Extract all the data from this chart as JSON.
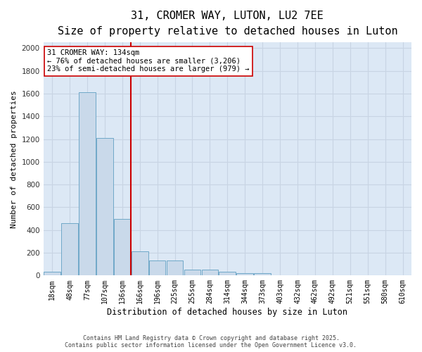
{
  "title_line1": "31, CROMER WAY, LUTON, LU2 7EE",
  "title_line2": "Size of property relative to detached houses in Luton",
  "xlabel": "Distribution of detached houses by size in Luton",
  "ylabel": "Number of detached properties",
  "categories": [
    "18sqm",
    "48sqm",
    "77sqm",
    "107sqm",
    "136sqm",
    "166sqm",
    "196sqm",
    "225sqm",
    "255sqm",
    "284sqm",
    "314sqm",
    "344sqm",
    "373sqm",
    "403sqm",
    "432sqm",
    "462sqm",
    "492sqm",
    "521sqm",
    "551sqm",
    "580sqm",
    "610sqm"
  ],
  "values": [
    30,
    460,
    1610,
    1210,
    500,
    210,
    130,
    130,
    50,
    50,
    30,
    20,
    20,
    0,
    0,
    0,
    0,
    0,
    0,
    0,
    0
  ],
  "bar_color": "#c9d9ea",
  "bar_edgecolor": "#6fa8c8",
  "vline_x": 4.5,
  "vline_color": "#cc0000",
  "annotation_text": "31 CROMER WAY: 134sqm\n← 76% of detached houses are smaller (3,206)\n23% of semi-detached houses are larger (979) →",
  "annotation_box_edgecolor": "#cc0000",
  "annotation_box_facecolor": "#ffffff",
  "ylim": [
    0,
    2050
  ],
  "yticks": [
    0,
    200,
    400,
    600,
    800,
    1000,
    1200,
    1400,
    1600,
    1800,
    2000
  ],
  "grid_color": "#c8d4e3",
  "fig_background": "#ffffff",
  "plot_background": "#dce8f5",
  "footer_line1": "Contains HM Land Registry data © Crown copyright and database right 2025.",
  "footer_line2": "Contains public sector information licensed under the Open Government Licence v3.0.",
  "title_fontsize": 11,
  "subtitle_fontsize": 9.5,
  "tick_fontsize": 7,
  "ylabel_fontsize": 8,
  "xlabel_fontsize": 8.5,
  "annotation_fontsize": 7.5
}
